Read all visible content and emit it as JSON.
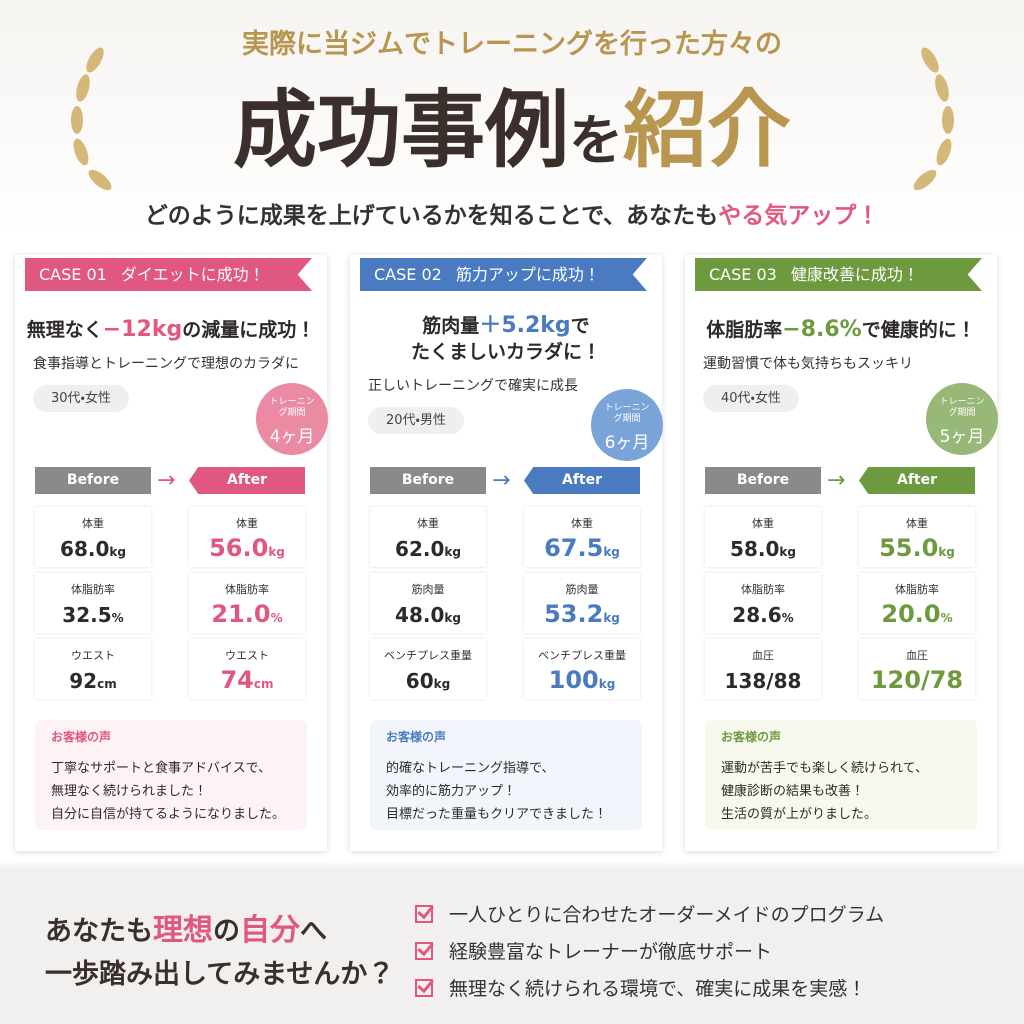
{
  "header": {
    "lead": "実際に当ジムでトレーニングを行った方々の",
    "title": [
      "成功事例",
      "を",
      "紹介"
    ],
    "subtitle": [
      "どのように成果を上げているかを知ることで、あなたも",
      "やる気アップ！"
    ]
  },
  "cases": [
    {
      "case": "CASE 01",
      "tag": "ダイエットに成功！",
      "headline": {
        "pre": "無理なく",
        "highlight": "−12kg",
        "post": "の減量に成功！"
      },
      "sub": "食事指導とトレーニングで理想のカラダに",
      "profile": "30代・女性",
      "badge": {
        "label": "トレーニング期間",
        "value": "4ヶ月"
      },
      "before": "Before",
      "after": "After",
      "metrics": [
        {
          "name": "体重",
          "before": "68.0",
          "before_unit": "kg",
          "after": "56.0",
          "after_unit": "kg"
        },
        {
          "name": "体脂肪率",
          "before": "32.5",
          "before_unit": "%",
          "after": "21.0",
          "after_unit": "%"
        },
        {
          "name": "ウエスト",
          "before": "92",
          "before_unit": "cm",
          "after": "74",
          "after_unit": "cm"
        }
      ],
      "voice": {
        "title": "お客様の声",
        "lines": [
          "丁寧なサポートと食事アドバイスで、",
          "無理なく続けられました！",
          "自分に自信が持てるようになりました。"
        ]
      }
    },
    {
      "case": "CASE 02",
      "tag": "筋力アップに成功！",
      "headline": {
        "pre": "筋肉量",
        "highlight": "＋5.2kg",
        "post": "で",
        "line2": "たくましいカラダに！"
      },
      "sub": "正しいトレーニングで確実に成長",
      "profile": "20代・男性",
      "badge": {
        "label": "トレーニング期間",
        "value": "6ヶ月"
      },
      "before": "Before",
      "after": "After",
      "metrics": [
        {
          "name": "体重",
          "before": "62.0",
          "before_unit": "kg",
          "after": "67.5",
          "after_unit": "kg"
        },
        {
          "name": "筋肉量",
          "before": "48.0",
          "before_unit": "kg",
          "after": "53.2",
          "after_unit": "kg"
        },
        {
          "name": "ベンチプレス重量",
          "before": "60",
          "before_unit": "kg",
          "after": "100",
          "after_unit": "kg"
        }
      ],
      "voice": {
        "title": "お客様の声",
        "lines": [
          "的確なトレーニング指導で、",
          "効率的に筋力アップ！",
          "目標だった重量もクリアできました！"
        ]
      }
    },
    {
      "case": "CASE 03",
      "tag": "健康改善に成功！",
      "headline": {
        "pre": "体脂肪率",
        "highlight": "−8.6%",
        "post": "で健康的に！"
      },
      "sub": "運動習慣で体も気持ちもスッキリ",
      "profile": "40代・女性",
      "badge": {
        "label": "トレーニング期間",
        "value": "5ヶ月"
      },
      "before": "Before",
      "after": "After",
      "metrics": [
        {
          "name": "体重",
          "before": "58.0",
          "before_unit": "kg",
          "after": "55.0",
          "after_unit": "kg"
        },
        {
          "name": "体脂肪率",
          "before": "28.6",
          "before_unit": "%",
          "after": "20.0",
          "after_unit": "%"
        },
        {
          "name": "血圧",
          "before": "138/88",
          "after": "120/78"
        }
      ],
      "voice": {
        "title": "お客様の声",
        "lines": [
          "運動が苦手でも楽しく続けられて、",
          "健康診断の結果も改善！",
          "生活の質が上がりました。"
        ]
      }
    }
  ],
  "footer": {
    "cta": [
      [
        "あなたも",
        "理想",
        "の",
        "自分",
        "へ"
      ],
      "一歩踏み出してみませんか？"
    ],
    "points": [
      "一人ひとりに合わせたオーダーメイドのプログラム",
      "経験豊富なトレーナーが徹底サポート",
      "無理なく続けられる環境で、確実に成果を実感！"
    ]
  }
}
